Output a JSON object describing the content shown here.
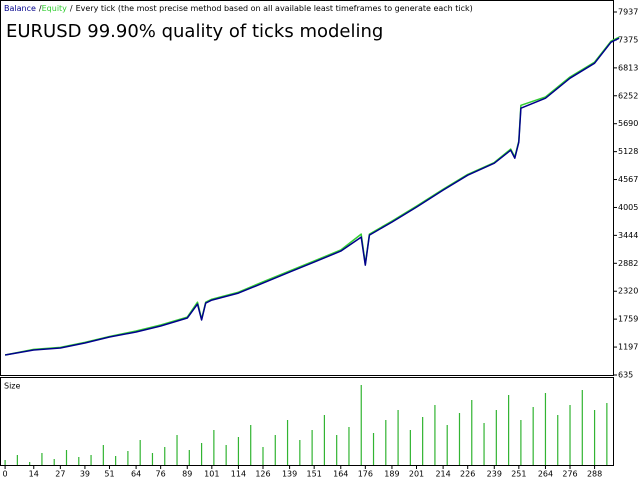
{
  "chart_data": [
    {
      "type": "line",
      "title": "EURUSD 99.90% quality of ticks modeling",
      "legend_separator": "/",
      "note": "Every tick (the most precise method based on all available least timeframes to generate each tick)",
      "x": [
        0,
        14,
        27,
        39,
        51,
        64,
        76,
        89,
        94,
        96,
        98,
        101,
        114,
        126,
        139,
        151,
        164,
        174,
        176,
        178,
        189,
        201,
        214,
        226,
        239,
        247,
        249,
        251,
        252,
        264,
        276,
        288,
        296,
        300
      ],
      "series": [
        {
          "name": "Equity",
          "color": "#32cd32",
          "values": [
            1037,
            1150,
            1190,
            1290,
            1410,
            1520,
            1640,
            1800,
            2100,
            1760,
            2100,
            2160,
            2300,
            2510,
            2730,
            2930,
            3150,
            3470,
            2870,
            3470,
            3730,
            4030,
            4370,
            4670,
            4910,
            5180,
            5020,
            5340,
            6060,
            6230,
            6630,
            6930,
            7350,
            7430
          ]
        },
        {
          "name": "Balance",
          "color": "#00008b",
          "values": [
            1037,
            1138,
            1178,
            1278,
            1399,
            1500,
            1620,
            1781,
            2062,
            1741,
            2082,
            2142,
            2283,
            2484,
            2705,
            2906,
            3128,
            3409,
            2846,
            3449,
            3711,
            4012,
            4354,
            4655,
            4896,
            5158,
            4997,
            5318,
            6002,
            6203,
            6605,
            6907,
            7329,
            7409
          ]
        }
      ],
      "xlim": [
        -2,
        297
      ],
      "ylim": [
        635,
        7937
      ],
      "yticks": [
        635,
        1197,
        1759,
        2320,
        2882,
        3444,
        4005,
        4567,
        5128,
        5690,
        6252,
        6813,
        7375,
        7937
      ]
    },
    {
      "type": "bar",
      "title": "Size",
      "color": "#32b432",
      "x": [
        0,
        6,
        12,
        18,
        24,
        30,
        36,
        42,
        48,
        54,
        60,
        66,
        72,
        78,
        84,
        90,
        96,
        102,
        108,
        114,
        120,
        126,
        132,
        138,
        144,
        150,
        156,
        162,
        168,
        174,
        180,
        186,
        192,
        198,
        204,
        210,
        216,
        222,
        228,
        234,
        240,
        246,
        252,
        258,
        264,
        270,
        276,
        282,
        288,
        294
      ],
      "values": [
        0.05,
        0.1,
        0.03,
        0.12,
        0.06,
        0.15,
        0.08,
        0.1,
        0.2,
        0.09,
        0.14,
        0.25,
        0.12,
        0.18,
        0.3,
        0.15,
        0.22,
        0.35,
        0.2,
        0.28,
        0.4,
        0.18,
        0.3,
        0.45,
        0.25,
        0.35,
        0.5,
        0.3,
        0.38,
        0.8,
        0.32,
        0.45,
        0.55,
        0.35,
        0.48,
        0.6,
        0.4,
        0.52,
        0.65,
        0.42,
        0.55,
        0.7,
        0.45,
        0.58,
        0.72,
        0.5,
        0.6,
        0.75,
        0.55,
        0.62
      ],
      "xlim": [
        -2,
        297
      ],
      "ylim": [
        0,
        0.85
      ],
      "xticks": [
        0,
        14,
        27,
        39,
        51,
        64,
        76,
        89,
        101,
        114,
        126,
        139,
        151,
        164,
        176,
        189,
        201,
        214,
        226,
        239,
        251,
        264,
        276,
        288
      ]
    }
  ]
}
